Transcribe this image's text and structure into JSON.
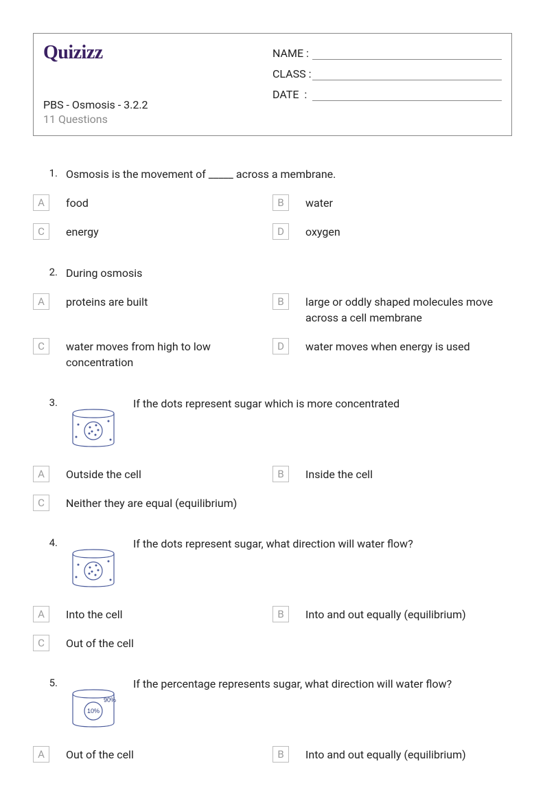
{
  "header": {
    "logo_text": "Quizizz",
    "quiz_title": "PBS - Osmosis - 3.2.2",
    "question_count": "11 Questions",
    "fields": [
      {
        "label": "NAME :"
      },
      {
        "label": "CLASS :"
      },
      {
        "label": "DATE  :"
      }
    ]
  },
  "option_letters": [
    "A",
    "B",
    "C",
    "D"
  ],
  "diagram_colors": {
    "stroke": "#4a5a9a",
    "fill": "#4a5a9a"
  },
  "questions": [
    {
      "num": "1.",
      "text": "Osmosis is the movement of _____ across a membrane.",
      "image": null,
      "options": [
        {
          "letter": "A",
          "text": "food"
        },
        {
          "letter": "B",
          "text": "water"
        },
        {
          "letter": "C",
          "text": "energy"
        },
        {
          "letter": "D",
          "text": "oxygen"
        }
      ]
    },
    {
      "num": "2.",
      "text": "During osmosis",
      "image": null,
      "options": [
        {
          "letter": "A",
          "text": "proteins are built"
        },
        {
          "letter": "B",
          "text": "large or oddly shaped molecules move across a cell membrane"
        },
        {
          "letter": "C",
          "text": "water moves from high to low concentration"
        },
        {
          "letter": "D",
          "text": "water moves when energy is used"
        }
      ]
    },
    {
      "num": "3.",
      "text": "If the dots represent sugar which is more concentrated",
      "image": "cell-dots",
      "options": [
        {
          "letter": "A",
          "text": "Outside the cell"
        },
        {
          "letter": "B",
          "text": "Inside the cell"
        },
        {
          "letter": "C",
          "text": "Neither they are equal (equilibrium)"
        }
      ]
    },
    {
      "num": "4.",
      "text": "If the dots represent sugar, what direction will water flow?",
      "image": "cell-dots",
      "options": [
        {
          "letter": "A",
          "text": "Into the cell"
        },
        {
          "letter": "B",
          "text": "Into and out equally (equilibrium)"
        },
        {
          "letter": "C",
          "text": "Out of the cell"
        }
      ]
    },
    {
      "num": "5.",
      "text": "If the percentage represents sugar, what direction will water flow?",
      "image": "cell-percent",
      "options": [
        {
          "letter": "A",
          "text": "Out of the cell"
        },
        {
          "letter": "B",
          "text": "Into and out equally (equilibrium)"
        }
      ]
    }
  ],
  "diagrams": {
    "cell-dots": {
      "type": "cell-with-dots",
      "outer_dots": [
        [
          18,
          40
        ],
        [
          62,
          35
        ],
        [
          15,
          58
        ],
        [
          65,
          62
        ]
      ],
      "inner_dots": [
        [
          35,
          44
        ],
        [
          44,
          41
        ],
        [
          38,
          50
        ],
        [
          47,
          48
        ],
        [
          43,
          55
        ],
        [
          34,
          53
        ]
      ]
    },
    "cell-percent": {
      "type": "cell-with-percent",
      "outer_text": "90%",
      "inner_text": "10%"
    }
  }
}
